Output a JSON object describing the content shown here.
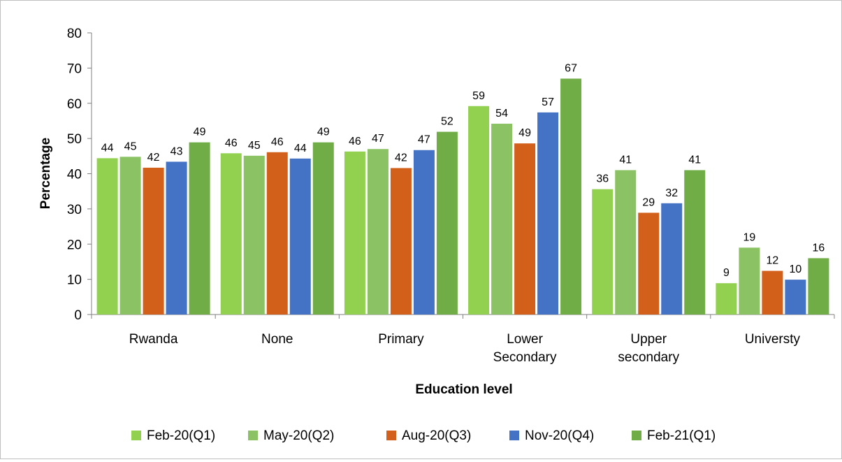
{
  "chart_data": {
    "type": "bar",
    "title": "",
    "xlabel": "Education level",
    "ylabel": "Percentage",
    "ylim": [
      0,
      80
    ],
    "yticks": [
      0,
      10,
      20,
      30,
      40,
      50,
      60,
      70,
      80
    ],
    "grid": false,
    "legend_position": "bottom",
    "categories": [
      [
        "Rwanda"
      ],
      [
        "None"
      ],
      [
        "Primary"
      ],
      [
        "Lower",
        "Secondary"
      ],
      [
        "Upper",
        "secondary"
      ],
      [
        "Universty"
      ]
    ],
    "series": [
      {
        "name": "Feb-20(Q1)",
        "color": "#92d050",
        "values": [
          44.4,
          45.8,
          46.3,
          59.2,
          35.6,
          8.9
        ],
        "labels": [
          "44",
          "46",
          "46",
          "59",
          "36",
          "9"
        ]
      },
      {
        "name": "May-20(Q2)",
        "color": "#8bc263",
        "values": [
          44.8,
          45.1,
          47.0,
          54.2,
          41.0,
          19.0
        ],
        "labels": [
          "45",
          "45",
          "47",
          "54",
          "41",
          "19"
        ]
      },
      {
        "name": "Aug-20(Q3)",
        "color": "#d2601a",
        "values": [
          41.7,
          46.1,
          41.6,
          48.6,
          28.9,
          12.4
        ],
        "labels": [
          "42",
          "46",
          "42",
          "49",
          "29",
          "12"
        ]
      },
      {
        "name": "Nov-20(Q4)",
        "color": "#4472c4",
        "values": [
          43.4,
          44.3,
          46.7,
          57.4,
          31.6,
          9.9
        ],
        "labels": [
          "43",
          "44",
          "47",
          "57",
          "32",
          "10"
        ]
      },
      {
        "name": "Feb-21(Q1)",
        "color": "#70ad47",
        "values": [
          48.9,
          48.9,
          51.9,
          67.0,
          41.0,
          16.0
        ],
        "labels": [
          "49",
          "49",
          "52",
          "67",
          "41",
          "16"
        ]
      }
    ]
  }
}
